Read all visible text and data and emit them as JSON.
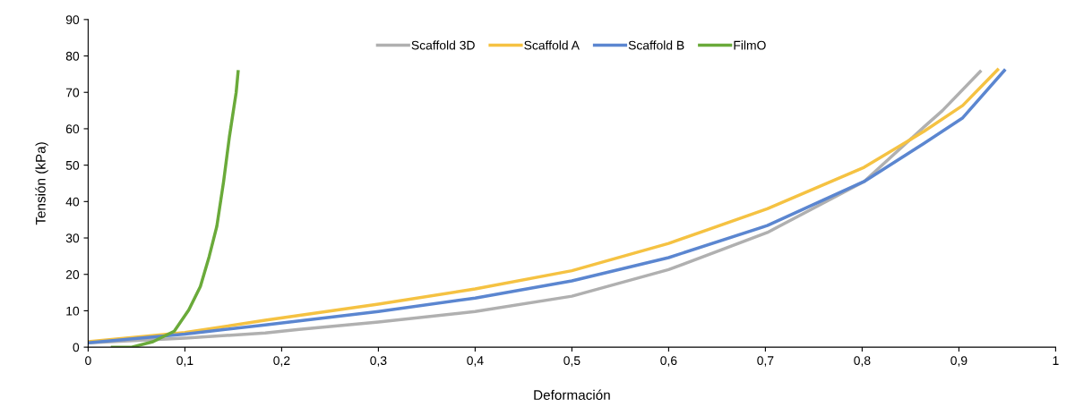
{
  "chart_data": {
    "type": "line",
    "xlabel": "Deformación",
    "ylabel": "Tensión (kPa)",
    "xlim": [
      0,
      1
    ],
    "ylim": [
      0,
      90
    ],
    "xticks": [
      0,
      {
        "value": 0.1,
        "label": "0,1"
      },
      {
        "value": 0.2,
        "label": "0,2"
      },
      {
        "value": 0.3,
        "label": "0,3"
      },
      {
        "value": 0.4,
        "label": "0,4"
      },
      {
        "value": 0.5,
        "label": "0,5"
      },
      {
        "value": 0.6,
        "label": "0,6"
      },
      {
        "value": 0.7,
        "label": "0,7"
      },
      {
        "value": 0.8,
        "label": "0,8"
      },
      {
        "value": 0.9,
        "label": "0,9"
      },
      1
    ],
    "yticks": [
      0,
      10,
      20,
      30,
      40,
      50,
      60,
      70,
      80,
      90
    ],
    "grid": false,
    "legend": "top",
    "marker": "none",
    "line_style": "solid",
    "series": [
      {
        "name": "Scaffold 3D",
        "color": "#b0b0b0",
        "x": [
          0,
          0.1,
          0.183,
          0.218,
          0.3,
          0.4,
          0.5,
          0.6,
          0.702,
          0.802,
          0.864,
          0.883,
          0.922
        ],
        "values": [
          1.2,
          2.5,
          3.9,
          4.9,
          6.9,
          9.8,
          14,
          21.3,
          31.5,
          45.5,
          60.5,
          65,
          75.7
        ]
      },
      {
        "name": "Scaffold A",
        "color": "#f5c242",
        "x": [
          0,
          0.1,
          0.183,
          0.3,
          0.4,
          0.5,
          0.6,
          0.702,
          0.802,
          0.864,
          0.904,
          0.94
        ],
        "values": [
          1.5,
          4,
          7.4,
          11.8,
          16,
          21,
          28.5,
          38,
          49.4,
          59.3,
          66.4,
          76.2
        ]
      },
      {
        "name": "Scaffold B",
        "color": "#5b86d0",
        "x": [
          0,
          0.1,
          0.183,
          0.3,
          0.4,
          0.5,
          0.6,
          0.702,
          0.802,
          0.864,
          0.904,
          0.947
        ],
        "values": [
          1.2,
          3.6,
          6.1,
          9.8,
          13.5,
          18.2,
          24.6,
          33.4,
          45.5,
          56,
          63,
          76
        ]
      },
      {
        "name": "FilmO",
        "color": "#6aaa3a",
        "x": [
          0.025,
          0.045,
          0.067,
          0.089,
          0.104,
          0.116,
          0.125,
          0.133,
          0.14,
          0.146,
          0.153,
          0.155
        ],
        "values": [
          0,
          0,
          1.5,
          4.4,
          10.2,
          16.7,
          24.8,
          33.2,
          45.5,
          57.8,
          70,
          75.7
        ]
      }
    ]
  }
}
